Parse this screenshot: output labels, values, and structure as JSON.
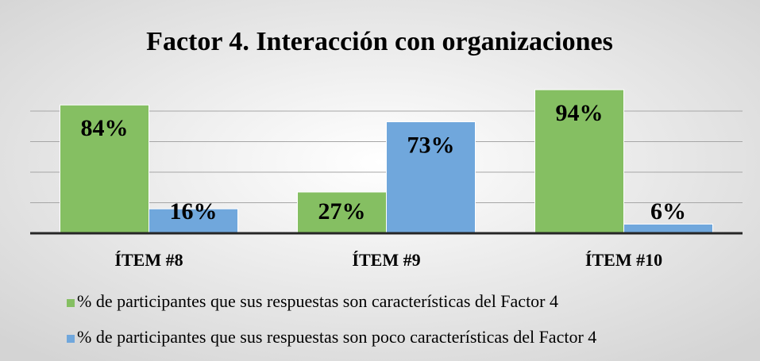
{
  "chart_data": {
    "type": "bar",
    "title": "Factor 4. Interacción con organizaciones",
    "categories": [
      "ÍTEM #8",
      "ÍTEM #9",
      "ÍTEM #10"
    ],
    "series": [
      {
        "name": "% de participantes que sus respuestas son características del Factor 4",
        "color": "#85bf62",
        "values": [
          84,
          27,
          94
        ],
        "value_labels": [
          "84%",
          "27%",
          "94%"
        ]
      },
      {
        "name": "% de participantes que sus respuestas son poco características del Factor 4",
        "color": "#70a7dc",
        "values": [
          16,
          73,
          6
        ],
        "value_labels": [
          "16%",
          "73%",
          "6%"
        ]
      }
    ],
    "ylim": [
      0,
      100
    ],
    "yticks": [
      0,
      20,
      40,
      60,
      80
    ],
    "grid": true,
    "legend": "bottom"
  }
}
